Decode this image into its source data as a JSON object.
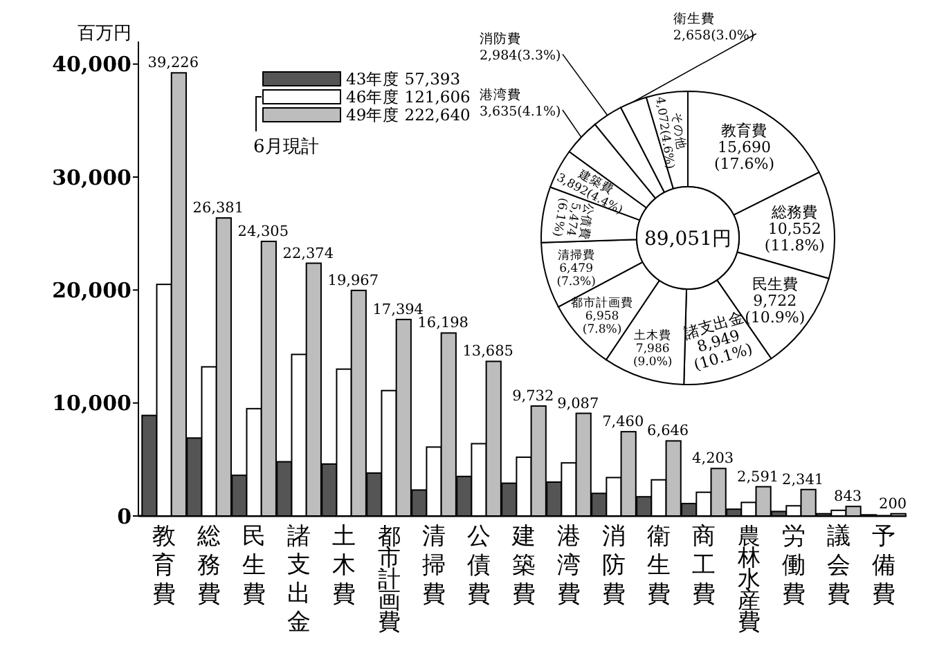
{
  "chart_data": [
    {
      "type": "bar",
      "ylabel": "百万円",
      "categories": [
        "教育費",
        "総務費",
        "民生費",
        "諸支出金",
        "土木費",
        "都市計画費",
        "清掃費",
        "公債費",
        "建築費",
        "港湾費",
        "消防費",
        "衛生費",
        "商工費",
        "農林水産費",
        "労働費",
        "議会費",
        "予備費"
      ],
      "series": [
        {
          "name": "43年度 57,393",
          "color": "#555555",
          "values": [
            8900,
            6900,
            3600,
            4800,
            4600,
            3800,
            2300,
            3500,
            2900,
            3000,
            2000,
            1700,
            1100,
            600,
            400,
            200,
            100
          ]
        },
        {
          "name": "46年度 121,606",
          "color": "#ffffff",
          "values": [
            20500,
            13200,
            9500,
            14300,
            13000,
            11100,
            6100,
            6400,
            5200,
            4700,
            3400,
            3200,
            2100,
            1200,
            900,
            500,
            null
          ]
        },
        {
          "name": "49年度 222,640",
          "color": "#bdbdbd",
          "values": [
            39226,
            26381,
            24305,
            22374,
            19967,
            17394,
            16198,
            13685,
            9732,
            9087,
            7460,
            6646,
            4203,
            2591,
            2341,
            843,
            200
          ],
          "value_labels": [
            "39,226",
            "26,381",
            "24,305",
            "22,374",
            "19,967",
            "17,394",
            "16,198",
            "13,685",
            "9,732",
            "9,087",
            "7,460",
            "6,646",
            "4,203",
            "2,591",
            "2,341",
            "843",
            "200"
          ]
        }
      ],
      "ylim": [
        0,
        42000
      ],
      "yticks": [
        0,
        {
          "value": 10000,
          "label": "10,000"
        },
        {
          "value": 20000,
          "label": "20,000"
        },
        {
          "value": 30000,
          "label": "30,000"
        },
        {
          "value": 40000,
          "label": "40,000"
        }
      ],
      "legend": "top left",
      "annotations": [
        "6月現計"
      ]
    },
    {
      "type": "donut",
      "categories": [
        "教育費",
        "総務費",
        "民生費",
        "諸支出金",
        "土木費",
        "都市計画費",
        "清掃費",
        "公債費",
        "建築費",
        "港湾費",
        "消防費",
        "衛生費",
        "その他"
      ],
      "values": [
        15690,
        10552,
        9722,
        8949,
        7986,
        6958,
        6479,
        5474,
        3892,
        3635,
        2984,
        2658,
        4072
      ],
      "colors": [
        "#ffffff",
        "#ffffff",
        "#ffffff",
        "#ffffff",
        "#ffffff",
        "#ffffff",
        "#ffffff",
        "#ffffff",
        "#ffffff",
        "#ffffff",
        "#ffffff",
        "#ffffff",
        "#ffffff"
      ],
      "value_labels": [
        "15,690(17.6%)",
        "10,552(11.8%)",
        "9,722(10.9%)",
        "8,949(10.1%)",
        "7,986(9.0%)",
        "6,958(7.8%)",
        "6,479(7.3%)",
        "5,474(6.1%)",
        "3,892(4.4%)",
        "3,635(4.1%)",
        "2,984(3.3%)",
        "2,658(3.0%)",
        "4,072(4.6%)"
      ],
      "annotations": [
        "89,051円"
      ]
    }
  ]
}
